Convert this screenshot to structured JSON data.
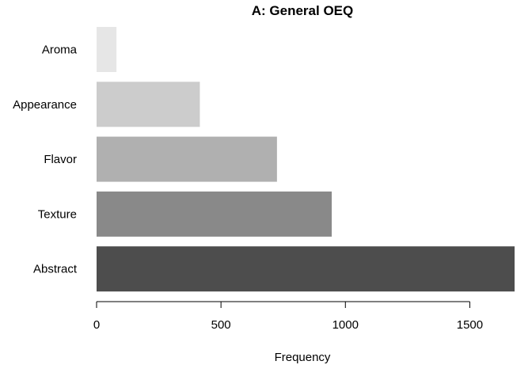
{
  "chart_data": {
    "type": "bar",
    "orientation": "horizontal",
    "title": "A: General OEQ",
    "xlabel": "Frequency",
    "ylabel": "",
    "categories": [
      "Aroma",
      "Appearance",
      "Flavor",
      "Texture",
      "Abstract"
    ],
    "values": [
      80,
      415,
      725,
      945,
      1680
    ],
    "colors": [
      "#e6e6e6",
      "#cccccc",
      "#b0b0b0",
      "#898989",
      "#4d4d4d"
    ],
    "xlim": [
      0,
      1680
    ],
    "xticks": [
      0,
      500,
      1000,
      1500
    ],
    "xtick_labels": [
      "0",
      "500",
      "1000",
      "1500"
    ],
    "grid": false,
    "legend": "none"
  }
}
